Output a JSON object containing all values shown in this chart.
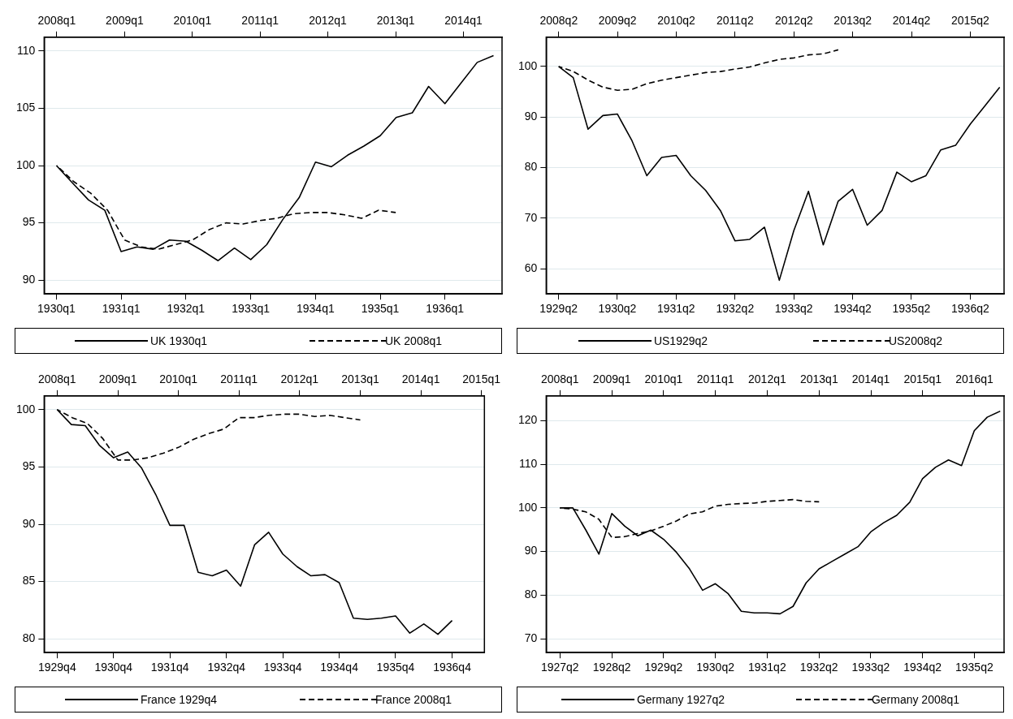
{
  "chart_data": [
    {
      "type": "line",
      "xlim": [
        "1929-10-24",
        "1936-11-18"
      ],
      "xticks": [
        {
          "value": "1930-01",
          "label": "1930q1"
        },
        {
          "value": "1931-01",
          "label": "1931q1"
        },
        {
          "value": "1932-01",
          "label": "1932q1"
        },
        {
          "value": "1933-01",
          "label": "1933q1"
        },
        {
          "value": "1934-01",
          "label": "1934q1"
        },
        {
          "value": "1935-01",
          "label": "1935q1"
        },
        {
          "value": "1936-01",
          "label": "1936q1"
        }
      ],
      "x2lim": [
        "2007-10-25",
        "2014-07-28"
      ],
      "x2ticks": [
        {
          "value": "2008-01",
          "label": "2008q1"
        },
        {
          "value": "2009-01",
          "label": "2009q1"
        },
        {
          "value": "2010-01",
          "label": "2010q1"
        },
        {
          "value": "2011-01",
          "label": "2011q1"
        },
        {
          "value": "2012-01",
          "label": "2012q1"
        },
        {
          "value": "2013-01",
          "label": "2013q1"
        },
        {
          "value": "2014-01",
          "label": "2014q1"
        }
      ],
      "ylim": [
        88.8,
        111.2
      ],
      "yticks": [
        90,
        95,
        100,
        105,
        110
      ],
      "grid": "y",
      "legend": "bottom",
      "series": [
        {
          "name": "UK 1930q1",
          "color": "#000000",
          "line_style": "solid",
          "x": [
            "1930-01",
            "1930-04",
            "1930-07",
            "1930-10",
            "1931-01",
            "1931-04",
            "1931-07",
            "1931-10",
            "1932-01",
            "1932-04",
            "1932-07",
            "1932-10",
            "1933-01",
            "1933-04",
            "1933-07",
            "1933-10",
            "1934-01",
            "1934-04",
            "1934-07",
            "1934-10",
            "1935-01",
            "1935-04",
            "1935-07",
            "1935-10",
            "1936-01",
            "1936-04",
            "1936-07",
            "1936-10"
          ],
          "values": [
            100,
            98.5,
            97.0,
            96.1,
            92.5,
            92.9,
            92.7,
            93.5,
            93.4,
            92.6,
            91.7,
            92.8,
            91.8,
            93.1,
            95.3,
            97.2,
            100.3,
            99.9,
            100.9,
            101.7,
            102.6,
            104.2,
            104.6,
            106.9,
            105.4,
            107.2,
            109.0,
            109.6
          ]
        },
        {
          "name": "UK 2008q1",
          "color": "#000000",
          "line_style": "dashed",
          "axis": "x2",
          "x": [
            "2008-01",
            "2008-04",
            "2008-07",
            "2008-10",
            "2009-01",
            "2009-04",
            "2009-07",
            "2009-10",
            "2010-01",
            "2010-04",
            "2010-07",
            "2010-10",
            "2011-01",
            "2011-04",
            "2011-07",
            "2011-10",
            "2012-01",
            "2012-04",
            "2012-07",
            "2012-10",
            "2013-01"
          ],
          "values": [
            100,
            98.6,
            97.6,
            96.1,
            93.5,
            92.9,
            92.7,
            93.1,
            93.5,
            94.4,
            95.0,
            94.9,
            95.2,
            95.4,
            95.8,
            95.9,
            95.9,
            95.7,
            95.4,
            96.1,
            95.9
          ]
        }
      ]
    },
    {
      "type": "line",
      "xlim": [
        "1929-01-14",
        "1936-10-28"
      ],
      "xticks": [
        {
          "value": "1929-04",
          "label": "1929q2"
        },
        {
          "value": "1930-04",
          "label": "1930q2"
        },
        {
          "value": "1931-04",
          "label": "1931q2"
        },
        {
          "value": "1932-04",
          "label": "1932q2"
        },
        {
          "value": "1933-04",
          "label": "1933q2"
        },
        {
          "value": "1934-04",
          "label": "1934q2"
        },
        {
          "value": "1935-04",
          "label": "1935q2"
        },
        {
          "value": "1936-04",
          "label": "1936q2"
        }
      ],
      "x2lim": [
        "2008-01-14",
        "2015-10-28"
      ],
      "x2ticks": [
        {
          "value": "2008-04",
          "label": "2008q2"
        },
        {
          "value": "2009-04",
          "label": "2009q2"
        },
        {
          "value": "2010-04",
          "label": "2010q2"
        },
        {
          "value": "2011-04",
          "label": "2011q2"
        },
        {
          "value": "2012-04",
          "label": "2012q2"
        },
        {
          "value": "2013-04",
          "label": "2013q2"
        },
        {
          "value": "2014-04",
          "label": "2014q2"
        },
        {
          "value": "2015-04",
          "label": "2015q2"
        }
      ],
      "ylim": [
        55,
        105.8
      ],
      "yticks": [
        60,
        70,
        80,
        90,
        100
      ],
      "grid": "y",
      "legend": "bottom",
      "series": [
        {
          "name": "US1929q2",
          "color": "#000000",
          "line_style": "solid",
          "x": [
            "1929-04",
            "1929-07",
            "1929-10",
            "1930-01",
            "1930-04",
            "1930-07",
            "1930-10",
            "1931-01",
            "1931-04",
            "1931-07",
            "1931-10",
            "1932-01",
            "1932-04",
            "1932-07",
            "1932-10",
            "1933-01",
            "1933-04",
            "1933-07",
            "1933-10",
            "1934-01",
            "1934-04",
            "1934-07",
            "1934-10",
            "1935-01",
            "1935-04",
            "1935-07",
            "1935-10",
            "1936-01",
            "1936-04",
            "1936-07",
            "1936-10"
          ],
          "values": [
            100,
            97.8,
            87.6,
            90.3,
            90.6,
            85.3,
            78.4,
            82.0,
            82.4,
            78.4,
            75.5,
            71.5,
            65.5,
            65.8,
            68.2,
            57.7,
            67.5,
            75.3,
            64.7,
            73.3,
            75.7,
            68.6,
            71.5,
            79.1,
            77.2,
            78.4,
            83.5,
            84.4,
            88.6,
            92.2,
            95.9
          ]
        },
        {
          "name": "US2008q2",
          "color": "#000000",
          "line_style": "dashed",
          "axis": "x2",
          "x": [
            "2008-04",
            "2008-07",
            "2008-10",
            "2009-01",
            "2009-04",
            "2009-07",
            "2009-10",
            "2010-01",
            "2010-04",
            "2010-07",
            "2010-10",
            "2011-01",
            "2011-04",
            "2011-07",
            "2011-10",
            "2012-01",
            "2012-04",
            "2012-07",
            "2012-10",
            "2013-01"
          ],
          "values": [
            100,
            99.0,
            97.3,
            95.9,
            95.3,
            95.5,
            96.6,
            97.3,
            97.8,
            98.3,
            98.8,
            99.0,
            99.5,
            99.9,
            100.7,
            101.4,
            101.7,
            102.3,
            102.5,
            103.3
          ]
        }
      ]
    },
    {
      "type": "line",
      "xlim": [
        "1929-07-09",
        "1937-04-28"
      ],
      "xticks": [
        {
          "value": "1929-10",
          "label": "1929q4"
        },
        {
          "value": "1930-10",
          "label": "1930q4"
        },
        {
          "value": "1931-10",
          "label": "1931q4"
        },
        {
          "value": "1932-10",
          "label": "1932q4"
        },
        {
          "value": "1933-10",
          "label": "1933q4"
        },
        {
          "value": "1934-10",
          "label": "1934q4"
        },
        {
          "value": "1935-10",
          "label": "1935q4"
        },
        {
          "value": "1936-10",
          "label": "1936q4"
        }
      ],
      "x2lim": [
        "2007-10-15",
        "2015-01-19"
      ],
      "x2ticks": [
        {
          "value": "2008-01",
          "label": "2008q1"
        },
        {
          "value": "2009-01",
          "label": "2009q1"
        },
        {
          "value": "2010-01",
          "label": "2010q1"
        },
        {
          "value": "2011-01",
          "label": "2011q1"
        },
        {
          "value": "2012-01",
          "label": "2012q1"
        },
        {
          "value": "2013-01",
          "label": "2013q1"
        },
        {
          "value": "2014-01",
          "label": "2014q1"
        },
        {
          "value": "2015-01",
          "label": "2015q1"
        }
      ],
      "ylim": [
        78.8,
        101.2
      ],
      "yticks": [
        80,
        85,
        90,
        95,
        100
      ],
      "grid": "y",
      "legend": "bottom",
      "series": [
        {
          "name": "France 1929q4",
          "color": "#000000",
          "line_style": "solid",
          "x": [
            "1929-10",
            "1930-01",
            "1930-04",
            "1930-07",
            "1930-10",
            "1931-01",
            "1931-04",
            "1931-07",
            "1931-10",
            "1932-01",
            "1932-04",
            "1932-07",
            "1932-10",
            "1933-01",
            "1933-04",
            "1933-07",
            "1933-10",
            "1934-01",
            "1934-04",
            "1934-07",
            "1934-10",
            "1935-01",
            "1935-04",
            "1935-07",
            "1935-10",
            "1936-01",
            "1936-04",
            "1936-07",
            "1936-10"
          ],
          "values": [
            100,
            98.7,
            98.6,
            96.9,
            95.8,
            96.3,
            94.9,
            92.6,
            89.9,
            89.9,
            85.8,
            85.5,
            86.0,
            84.6,
            88.2,
            89.3,
            87.4,
            86.3,
            85.5,
            85.6,
            84.9,
            81.8,
            81.7,
            81.8,
            82.0,
            80.5,
            81.3,
            80.4,
            81.6
          ]
        },
        {
          "name": "France 2008q1",
          "color": "#000000",
          "line_style": "dashed",
          "axis": "x2",
          "x": [
            "2008-01",
            "2008-04",
            "2008-07",
            "2008-10",
            "2009-01",
            "2009-04",
            "2009-07",
            "2009-10",
            "2010-01",
            "2010-04",
            "2010-07",
            "2010-10",
            "2011-01",
            "2011-04",
            "2011-07",
            "2011-10",
            "2012-01",
            "2012-04",
            "2012-07",
            "2012-10",
            "2013-01"
          ],
          "values": [
            100,
            99.3,
            98.8,
            97.5,
            95.6,
            95.6,
            95.8,
            96.2,
            96.7,
            97.4,
            97.9,
            98.3,
            99.3,
            99.3,
            99.5,
            99.6,
            99.6,
            99.4,
            99.5,
            99.3,
            99.1
          ]
        }
      ]
    },
    {
      "type": "line",
      "xlim": [
        "1926-12-25",
        "1935-10-28"
      ],
      "xticks": [
        {
          "value": "1927-04",
          "label": "1927q2"
        },
        {
          "value": "1928-04",
          "label": "1928q2"
        },
        {
          "value": "1929-04",
          "label": "1929q2"
        },
        {
          "value": "1930-04",
          "label": "1930q2"
        },
        {
          "value": "1931-04",
          "label": "1931q2"
        },
        {
          "value": "1932-04",
          "label": "1932q2"
        },
        {
          "value": "1933-04",
          "label": "1933q2"
        },
        {
          "value": "1934-04",
          "label": "1934q2"
        },
        {
          "value": "1935-04",
          "label": "1935q2"
        }
      ],
      "x2lim": [
        "2007-09-26",
        "2016-07-28"
      ],
      "x2ticks": [
        {
          "value": "2008-01",
          "label": "2008q1"
        },
        {
          "value": "2009-01",
          "label": "2009q1"
        },
        {
          "value": "2010-01",
          "label": "2010q1"
        },
        {
          "value": "2011-01",
          "label": "2011q1"
        },
        {
          "value": "2012-01",
          "label": "2012q1"
        },
        {
          "value": "2013-01",
          "label": "2013q1"
        },
        {
          "value": "2014-01",
          "label": "2014q1"
        },
        {
          "value": "2015-01",
          "label": "2015q1"
        },
        {
          "value": "2016-01",
          "label": "2016q1"
        }
      ],
      "ylim": [
        66.8,
        125.7
      ],
      "yticks": [
        70,
        80,
        90,
        100,
        110,
        120
      ],
      "grid": "y",
      "legend": "bottom",
      "series": [
        {
          "name": "Germany 1927q2",
          "color": "#000000",
          "line_style": "solid",
          "x": [
            "1927-04",
            "1927-07",
            "1927-10",
            "1928-01",
            "1928-04",
            "1928-07",
            "1928-10",
            "1929-01",
            "1929-04",
            "1929-07",
            "1929-10",
            "1930-01",
            "1930-04",
            "1930-07",
            "1930-10",
            "1931-01",
            "1931-04",
            "1931-07",
            "1931-10",
            "1932-01",
            "1932-04",
            "1932-07",
            "1932-10",
            "1933-01",
            "1933-04",
            "1933-07",
            "1933-10",
            "1934-01",
            "1934-04",
            "1934-07",
            "1934-10",
            "1935-01",
            "1935-04",
            "1935-07",
            "1935-10"
          ],
          "values": [
            100,
            100,
            94.9,
            89.4,
            98.7,
            95.8,
            93.6,
            94.9,
            92.8,
            89.8,
            86.0,
            81.1,
            82.6,
            80.3,
            76.3,
            75.9,
            75.9,
            75.7,
            77.4,
            82.8,
            86.0,
            87.7,
            89.4,
            91.1,
            94.5,
            96.6,
            98.3,
            101.3,
            106.7,
            109.3,
            111.0,
            109.7,
            117.7,
            120.8,
            122.2
          ]
        },
        {
          "name": "Germany 2008q1",
          "color": "#000000",
          "line_style": "dashed",
          "axis": "x2",
          "x": [
            "2008-01",
            "2008-04",
            "2008-07",
            "2008-10",
            "2009-01",
            "2009-04",
            "2009-07",
            "2009-10",
            "2010-01",
            "2010-04",
            "2010-07",
            "2010-10",
            "2011-01",
            "2011-04",
            "2011-07",
            "2011-10",
            "2012-01",
            "2012-04",
            "2012-07",
            "2012-10",
            "2013-01"
          ],
          "values": [
            100,
            99.7,
            99.1,
            97.4,
            93.2,
            93.4,
            94.1,
            94.7,
            95.8,
            97.0,
            98.6,
            99.1,
            100.4,
            100.8,
            101.0,
            101.1,
            101.5,
            101.7,
            101.9,
            101.5,
            101.4
          ]
        }
      ]
    }
  ]
}
